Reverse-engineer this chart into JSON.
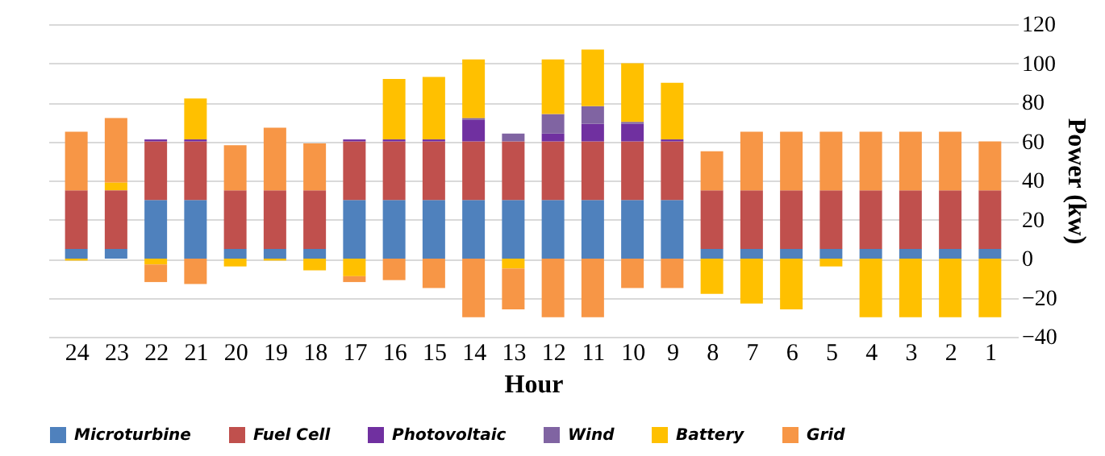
{
  "chart_data": {
    "type": "bar",
    "stacked": true,
    "xlabel": "Hour",
    "ylabel": "Power (kw)",
    "categories": [
      "24",
      "23",
      "22",
      "21",
      "20",
      "19",
      "18",
      "17",
      "16",
      "15",
      "14",
      "13",
      "12",
      "11",
      "10",
      "9",
      "8",
      "7",
      "6",
      "5",
      "4",
      "3",
      "2",
      "1"
    ],
    "series": [
      {
        "name": "Microturbine",
        "color": "#4f81bd",
        "values": [
          5,
          5,
          30,
          30,
          5,
          5,
          5,
          30,
          30,
          30,
          30,
          30,
          30,
          30,
          30,
          30,
          5,
          5,
          5,
          5,
          5,
          5,
          5,
          5
        ]
      },
      {
        "name": "Fuel Cell",
        "color": "#c0504d",
        "values": [
          30,
          30,
          30,
          30,
          30,
          30,
          30,
          30,
          30,
          30,
          30,
          30,
          30,
          30,
          30,
          30,
          30,
          30,
          30,
          30,
          30,
          30,
          30,
          30
        ]
      },
      {
        "name": "Photovoltaic",
        "color": "#7030a0",
        "values": [
          0,
          0,
          1,
          1,
          0,
          0,
          0,
          1,
          1,
          1,
          11,
          0,
          4,
          9,
          9,
          1,
          0,
          0,
          0,
          0,
          0,
          0,
          0,
          0
        ]
      },
      {
        "name": "Wind",
        "color": "#8064a2",
        "values": [
          0,
          0,
          0,
          0,
          0,
          0,
          0,
          0,
          0,
          0,
          1,
          4,
          10,
          9,
          1,
          0,
          0,
          0,
          0,
          0,
          0,
          0,
          0,
          0
        ]
      },
      {
        "name": "Battery",
        "color": "#ffc000",
        "values": [
          -1,
          4,
          -3,
          21,
          -4,
          -1,
          -6,
          -9,
          31,
          32,
          30,
          -5,
          28,
          29,
          30,
          29,
          -18,
          -23,
          -26,
          -4,
          -30,
          -30,
          -30,
          -30
        ]
      },
      {
        "name": "Grid",
        "color": "#f79646",
        "values": [
          30,
          33,
          -9,
          -13,
          23,
          32,
          24,
          -3,
          -11,
          -15,
          -30,
          -21,
          -30,
          -30,
          -15,
          -15,
          20,
          30,
          30,
          30,
          30,
          30,
          30,
          25
        ]
      }
    ],
    "ylim": [
      -40,
      120
    ],
    "yticks": [
      -40,
      -20,
      0,
      20,
      40,
      60,
      80,
      100,
      120
    ],
    "grid": "y",
    "legend": "bottom"
  }
}
